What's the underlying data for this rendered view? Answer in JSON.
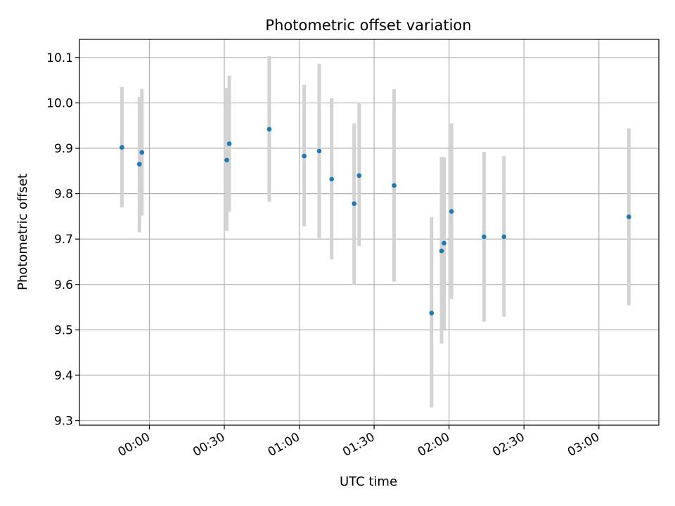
{
  "chart_data": {
    "type": "scatter",
    "title": "Photometric offset variation",
    "xlabel": "UTC time",
    "ylabel": "Photometric offset",
    "x_is_time": true,
    "xlim": [
      "23:32",
      "03:24"
    ],
    "ylim": [
      9.29,
      10.14
    ],
    "x_ticks": [
      "00:00",
      "00:30",
      "01:00",
      "01:30",
      "02:00",
      "02:30",
      "03:00"
    ],
    "y_ticks": [
      9.3,
      9.4,
      9.5,
      9.6,
      9.7,
      9.8,
      9.9,
      10.0,
      10.1
    ],
    "grid": true,
    "marker_color": "#1f77b4",
    "errorbar_color": "#d3d3d3",
    "points": [
      {
        "t": "23:49",
        "y": 9.902,
        "lo": 9.77,
        "hi": 10.035
      },
      {
        "t": "23:56",
        "y": 9.865,
        "lo": 9.715,
        "hi": 10.013
      },
      {
        "t": "23:57",
        "y": 9.891,
        "lo": 9.752,
        "hi": 10.031
      },
      {
        "t": "00:31",
        "y": 9.874,
        "lo": 9.718,
        "hi": 10.033
      },
      {
        "t": "00:32",
        "y": 9.91,
        "lo": 9.76,
        "hi": 10.06
      },
      {
        "t": "00:48",
        "y": 9.942,
        "lo": 9.782,
        "hi": 10.103
      },
      {
        "t": "01:02",
        "y": 9.883,
        "lo": 9.728,
        "hi": 10.04
      },
      {
        "t": "01:08",
        "y": 9.894,
        "lo": 9.702,
        "hi": 10.086
      },
      {
        "t": "01:13",
        "y": 9.832,
        "lo": 9.655,
        "hi": 10.01
      },
      {
        "t": "01:22",
        "y": 9.778,
        "lo": 9.6,
        "hi": 9.955
      },
      {
        "t": "01:24",
        "y": 9.84,
        "lo": 9.685,
        "hi": 10.0
      },
      {
        "t": "01:38",
        "y": 9.818,
        "lo": 9.606,
        "hi": 10.03
      },
      {
        "t": "01:53",
        "y": 9.537,
        "lo": 9.329,
        "hi": 9.748
      },
      {
        "t": "01:57",
        "y": 9.674,
        "lo": 9.47,
        "hi": 9.881
      },
      {
        "t": "01:58",
        "y": 9.691,
        "lo": 9.501,
        "hi": 9.88
      },
      {
        "t": "02:01",
        "y": 9.761,
        "lo": 9.568,
        "hi": 9.955
      },
      {
        "t": "02:14",
        "y": 9.705,
        "lo": 9.518,
        "hi": 9.892
      },
      {
        "t": "02:22",
        "y": 9.705,
        "lo": 9.529,
        "hi": 9.883
      },
      {
        "t": "03:12",
        "y": 9.749,
        "lo": 9.554,
        "hi": 9.944
      }
    ]
  }
}
